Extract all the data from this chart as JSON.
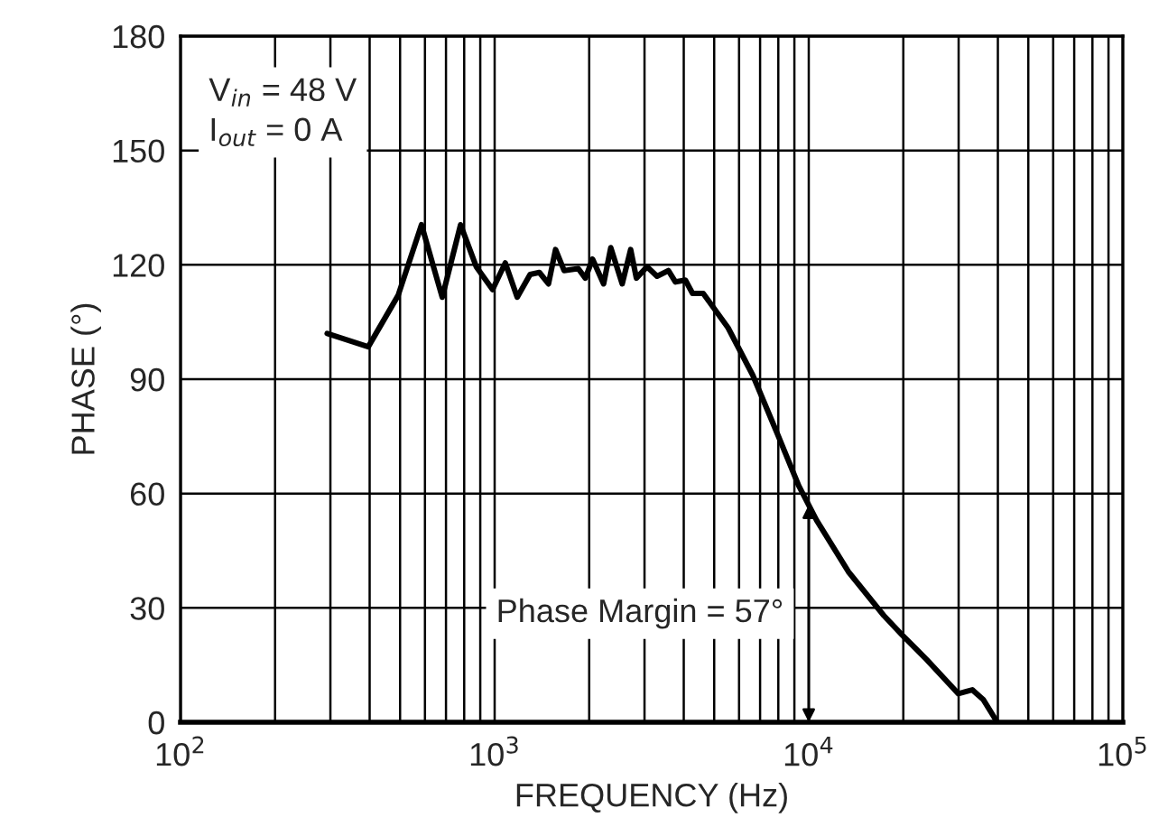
{
  "chart_data": {
    "type": "line",
    "xlabel": "FREQUENCY (Hz)",
    "ylabel": "PHASE (°)",
    "log": "x",
    "xlim": [
      100,
      100000
    ],
    "xticks": [
      {
        "value": 100,
        "label": "10$^{2}$"
      },
      {
        "value": 1000,
        "label": "10$^{3}$"
      },
      {
        "value": 10000,
        "label": "10$^{4}$"
      },
      {
        "value": 100000,
        "label": "10$^{5}$"
      }
    ],
    "ylim": [
      0,
      180
    ],
    "yticks": [
      0,
      30,
      60,
      90,
      120,
      150,
      180
    ],
    "grid": true,
    "series": [
      {
        "color": "#000000",
        "line_style": "solid",
        "marker": "none",
        "x": [
          293,
          396,
          493,
          585,
          681,
          779,
          874,
          985,
          1081,
          1180,
          1297,
          1388,
          1484,
          1563,
          1664,
          1846,
          1944,
          2050,
          2223,
          2343,
          2547,
          2710,
          2827,
          3057,
          3289,
          3573,
          3764,
          4048,
          4266,
          4613,
          5534,
          6637,
          7962,
          9296,
          10585,
          13370,
          17330,
          19770,
          23700,
          29930,
          33170,
          35900,
          39830
        ],
        "values": [
          102,
          98.5,
          112,
          130.5,
          111.5,
          130.5,
          119.5,
          113.5,
          120.5,
          111.5,
          117.5,
          118,
          115,
          124,
          118.5,
          119,
          116.5,
          121.5,
          115,
          124.5,
          115,
          124,
          116.5,
          119.5,
          117,
          118.5,
          115.5,
          116,
          112.5,
          112.5,
          103.5,
          91,
          75.5,
          62,
          53,
          39.5,
          28,
          23,
          16.5,
          7.5,
          8.5,
          6,
          0
        ]
      }
    ],
    "annotations": [
      "V$_{in}$ = 48 V\nI$_{out}$ = 0 A",
      {
        "text": "Phase Margin = 57°",
        "x": 10000,
        "y": 57
      }
    ]
  }
}
